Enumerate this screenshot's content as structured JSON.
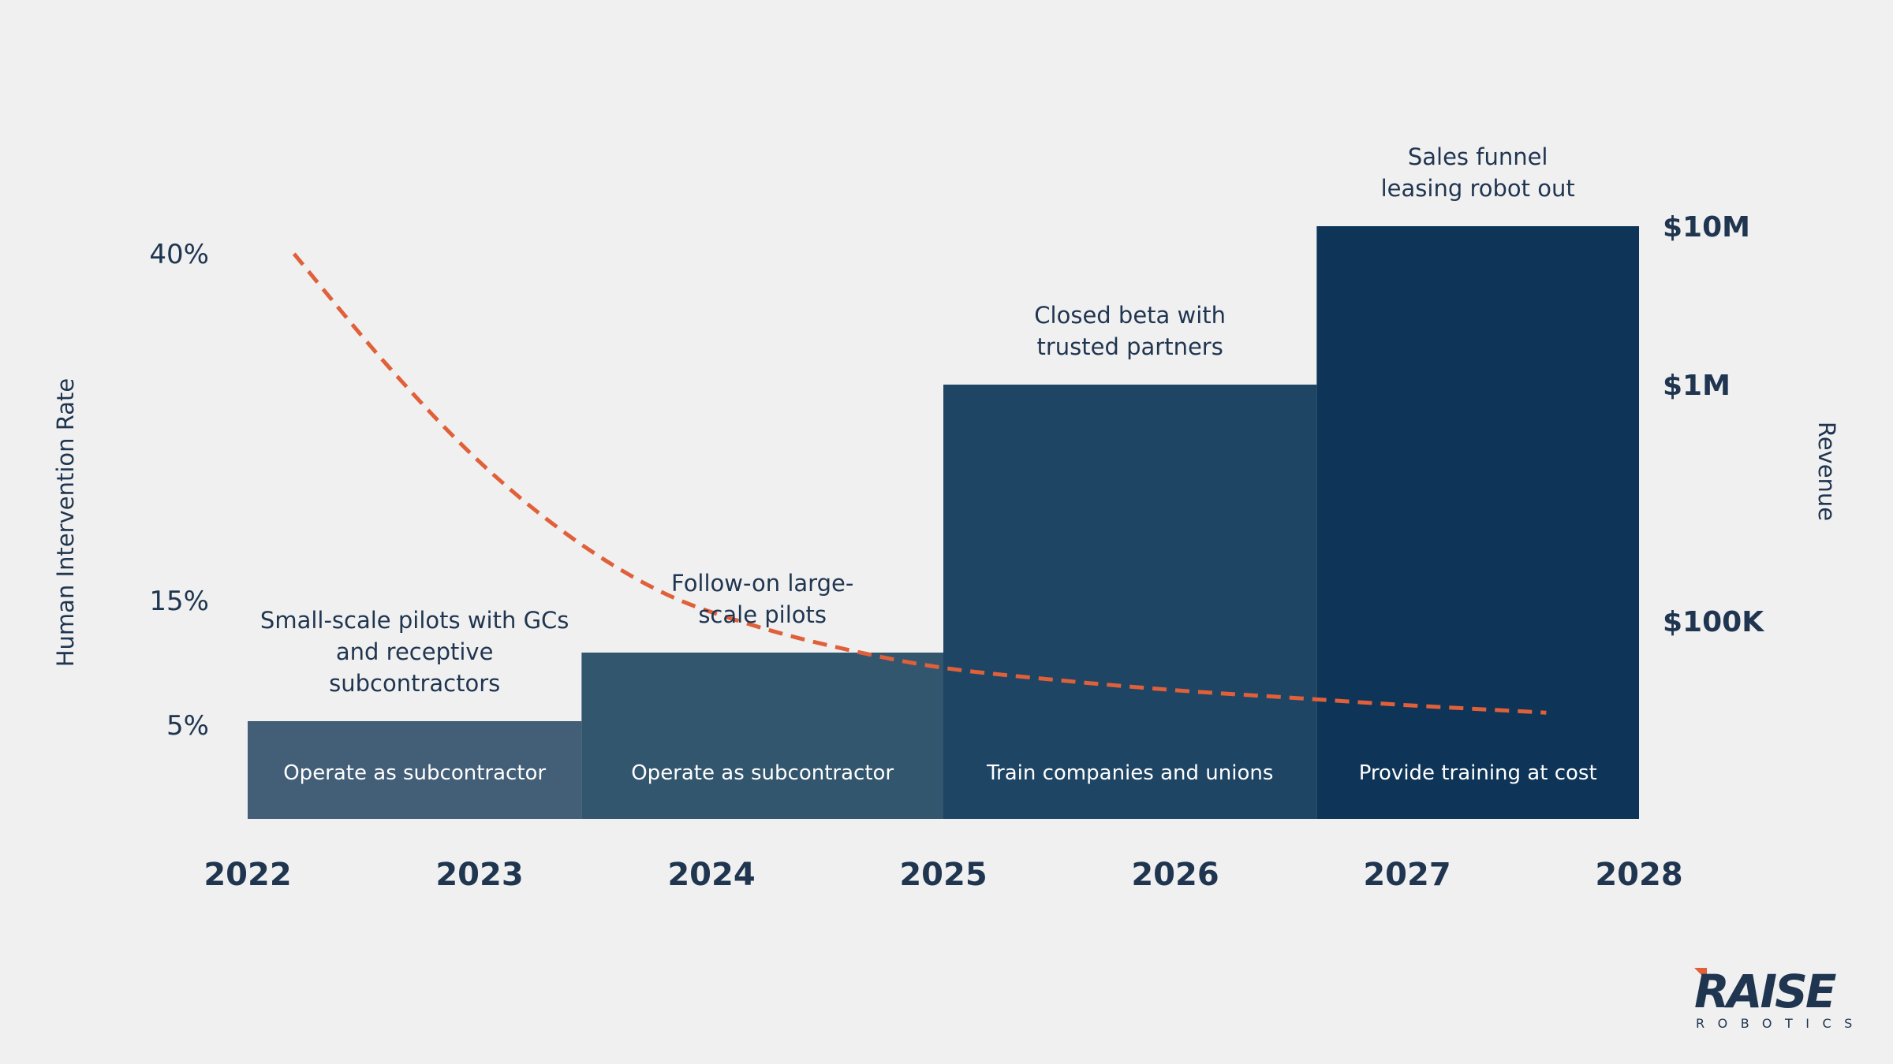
{
  "chart_data": {
    "type": "bar",
    "x_axis": {
      "tick_labels": [
        "2022",
        "2023",
        "2024",
        "2025",
        "2026",
        "2027",
        "2028"
      ],
      "range": [
        2022,
        2028
      ]
    },
    "left_axis": {
      "label": "Human Intervention Rate",
      "ticks": [
        {
          "label": "40%",
          "value": 40
        },
        {
          "label": "15%",
          "value": 15
        },
        {
          "label": "5%",
          "value": 5
        }
      ]
    },
    "right_axis": {
      "label": "Revenue",
      "scale": "log",
      "ticks": [
        {
          "label": "$10M",
          "value": 10000000
        },
        {
          "label": "$1M",
          "value": 1000000
        },
        {
          "label": "$100K",
          "value": 100000
        }
      ]
    },
    "phases": [
      {
        "x_start": 2022.0,
        "x_end": 2023.44,
        "revenue": 10000,
        "color": "#435f78",
        "label": "Operate as subcontractor",
        "annotation": [
          "Small-scale pilots with GCs",
          "and receptive",
          "subcontractors"
        ]
      },
      {
        "x_start": 2023.44,
        "x_end": 2025.0,
        "revenue": 50000,
        "color": "#33566f",
        "label": "Operate as subcontractor",
        "annotation": [
          "Follow-on large-",
          "scale pilots"
        ]
      },
      {
        "x_start": 2025.0,
        "x_end": 2026.61,
        "revenue": 1000000,
        "color": "#1f4565",
        "label": "Train companies and unions",
        "annotation": [
          "Closed beta with",
          "trusted partners"
        ]
      },
      {
        "x_start": 2026.61,
        "x_end": 2028.0,
        "revenue": 10000000,
        "color": "#0e3458",
        "label": "Provide training at cost",
        "annotation": [
          "Sales funnel",
          "leasing robot out"
        ]
      }
    ],
    "series": [
      {
        "name": "Human Intervention Rate",
        "style": "dashed",
        "color": "#e0603a",
        "x": [
          2022.2,
          2022.6,
          2023.0,
          2023.4,
          2023.8,
          2024.2,
          2024.6,
          2025.0,
          2025.5,
          2026.0,
          2026.5,
          2027.0,
          2027.6
        ],
        "y": [
          40,
          32,
          25,
          19.5,
          15.5,
          12.9,
          11.0,
          9.6,
          8.6,
          7.8,
          7.2,
          6.6,
          6.0
        ]
      }
    ]
  },
  "logo": {
    "name": "RAISE",
    "sub": "ROBOTICS",
    "colors": {
      "primary": "#1f3550",
      "accent": "#e0603a"
    }
  }
}
